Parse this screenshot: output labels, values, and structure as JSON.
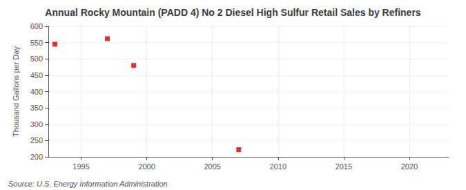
{
  "chart_data": {
    "type": "scatter",
    "title": "Annual Rocky Mountain (PADD 4) No 2 Diesel High Sulfur Retail Sales by Refiners",
    "ylabel": "Thousand Gallons per Day",
    "annotations": [
      "Source: U.S. Energy Information Administration"
    ],
    "x": [
      1993,
      1997,
      1999,
      2007
    ],
    "values": [
      545,
      562,
      480,
      222
    ],
    "color": "#cc0000",
    "marker": "square",
    "xlim": [
      1992.5,
      2023
    ],
    "xticks": [
      1995,
      2000,
      2005,
      2010,
      2015,
      2020
    ],
    "ylim": [
      200,
      600
    ],
    "yticks": [
      200,
      250,
      300,
      350,
      400,
      450,
      500,
      550,
      600
    ],
    "grid": true
  }
}
